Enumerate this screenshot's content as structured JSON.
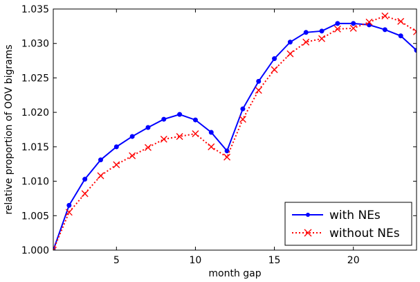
{
  "chart_data": {
    "type": "line",
    "title": "",
    "xlabel": "month gap",
    "ylabel": "relative proportion of OOV bigrams",
    "xlim": [
      1,
      24
    ],
    "ylim": [
      1.0,
      1.035
    ],
    "xticks": [
      5,
      10,
      15,
      20
    ],
    "xtick_labels": [
      "5",
      "10",
      "15",
      "20"
    ],
    "yticks": [
      1.0,
      1.005,
      1.01,
      1.015,
      1.02,
      1.025,
      1.03,
      1.035
    ],
    "ytick_labels": [
      "1.000",
      "1.005",
      "1.010",
      "1.015",
      "1.020",
      "1.025",
      "1.030",
      "1.035"
    ],
    "grid": false,
    "legend_position": "bottom-right",
    "series": [
      {
        "name": "with NEs",
        "color": "#0000ff",
        "marker": "dot",
        "line_style": "solid",
        "x": [
          1,
          2,
          3,
          4,
          5,
          6,
          7,
          8,
          9,
          10,
          11,
          12,
          13,
          14,
          15,
          16,
          17,
          18,
          19,
          20,
          21,
          22,
          23,
          24
        ],
        "y": [
          1.0,
          1.0065,
          1.0103,
          1.0131,
          1.015,
          1.0165,
          1.0178,
          1.019,
          1.0197,
          1.0189,
          1.0171,
          1.0144,
          1.0205,
          1.0245,
          1.0278,
          1.0302,
          1.0316,
          1.0318,
          1.0329,
          1.0329,
          1.0327,
          1.032,
          1.0311,
          1.029
        ]
      },
      {
        "name": "without NEs",
        "color": "#ff0000",
        "marker": "x",
        "line_style": "dotted",
        "x": [
          1,
          2,
          3,
          4,
          5,
          6,
          7,
          8,
          9,
          10,
          11,
          12,
          13,
          14,
          15,
          16,
          17,
          18,
          19,
          20,
          21,
          22,
          23,
          24
        ],
        "y": [
          1.0,
          1.0055,
          1.0082,
          1.0108,
          1.0124,
          1.0137,
          1.0149,
          1.0161,
          1.0165,
          1.0169,
          1.015,
          1.0135,
          1.019,
          1.0232,
          1.0262,
          1.0285,
          1.0302,
          1.0307,
          1.0321,
          1.0322,
          1.0331,
          1.034,
          1.0332,
          1.0317
        ]
      }
    ]
  }
}
